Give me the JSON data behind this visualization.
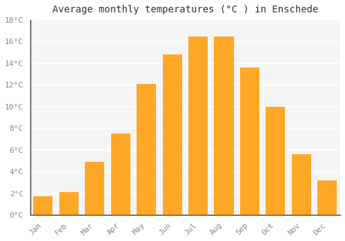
{
  "title": "Average monthly temperatures (°C ) in Enschede",
  "months": [
    "Jan",
    "Feb",
    "Mar",
    "Apr",
    "May",
    "Jun",
    "Jul",
    "Aug",
    "Sep",
    "Oct",
    "Nov",
    "Dec"
  ],
  "values": [
    1.7,
    2.1,
    4.9,
    7.5,
    12.1,
    14.8,
    16.5,
    16.5,
    13.6,
    10.0,
    5.6,
    3.2
  ],
  "bar_color": "#FFA726",
  "ylim": [
    0,
    18
  ],
  "yticks": [
    0,
    2,
    4,
    6,
    8,
    10,
    12,
    14,
    16,
    18
  ],
  "ytick_labels": [
    "0°C",
    "2°C",
    "4°C",
    "6°C",
    "8°C",
    "10°C",
    "12°C",
    "14°C",
    "16°C",
    "18°C"
  ],
  "background_color": "#ffffff",
  "plot_bg_color": "#f5f5f5",
  "grid_color": "#ffffff",
  "title_fontsize": 10,
  "tick_fontsize": 8,
  "tick_color": "#888888",
  "spine_color": "#333333"
}
